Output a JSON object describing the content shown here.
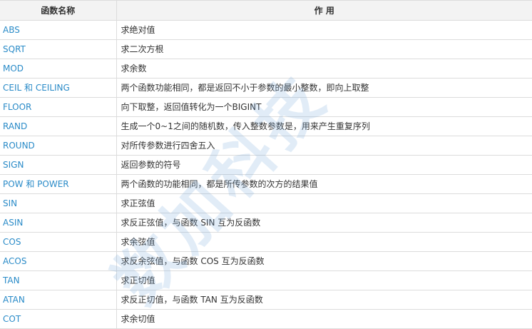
{
  "table": {
    "headers": [
      "函数名称",
      "作 用"
    ],
    "rows": [
      {
        "name": "ABS",
        "desc": "求绝对值"
      },
      {
        "name": "SQRT",
        "desc": "求二次方根"
      },
      {
        "name": "MOD",
        "desc": "求余数"
      },
      {
        "name": "CEIL 和 CEILING",
        "desc": "两个函数功能相同，都是返回不小于参数的最小整数，即向上取整"
      },
      {
        "name": "FLOOR",
        "desc": "向下取整，返回值转化为一个BIGINT"
      },
      {
        "name": "RAND",
        "desc": "生成一个0~1之间的随机数，传入整数参数是，用来产生重复序列"
      },
      {
        "name": "ROUND",
        "desc": "对所传参数进行四舍五入"
      },
      {
        "name": "SIGN",
        "desc": "返回参数的符号"
      },
      {
        "name": "POW 和 POWER",
        "desc": "两个函数的功能相同，都是所传参数的次方的结果值"
      },
      {
        "name": "SIN",
        "desc": "求正弦值"
      },
      {
        "name": "ASIN",
        "desc": "求反正弦值，与函数 SIN 互为反函数"
      },
      {
        "name": "COS",
        "desc": "求余弦值"
      },
      {
        "name": "ACOS",
        "desc": "求反余弦值，与函数 COS 互为反函数"
      },
      {
        "name": "TAN",
        "desc": "求正切值"
      },
      {
        "name": "ATAN",
        "desc": "求反正切值，与函数 TAN 互为反函数"
      },
      {
        "name": "COT",
        "desc": "求余切值"
      }
    ]
  },
  "watermark": "数加科技",
  "colors": {
    "name_text": "#2a8bc8",
    "header_bg": "#f3f3f3",
    "watermark": "#aac8e6"
  }
}
